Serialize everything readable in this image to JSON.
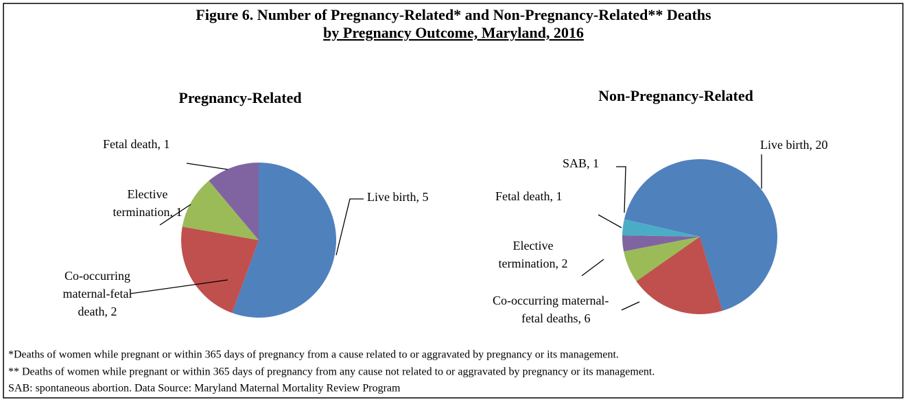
{
  "title": [
    "Figure 6. Number of Pregnancy-Related* and Non-Pregnancy-Related** Deaths",
    "by Pregnancy Outcome, Maryland, 2016"
  ],
  "chart_data": [
    {
      "type": "pie",
      "title": "Pregnancy-Related",
      "values": [
        5,
        2,
        1,
        1
      ],
      "value_labels": [
        [
          "Live birth, 5"
        ],
        [
          "Co-occurring",
          "maternal-fetal",
          "death, 2"
        ],
        [
          "Elective",
          "termination, 1"
        ],
        [
          "Fetal death, 1"
        ]
      ],
      "colors": [
        "#4f81bd",
        "#c0504d",
        "#9bbb59",
        "#8064a2"
      ]
    },
    {
      "type": "pie",
      "title": "Non-Pregnancy-Related",
      "values": [
        20,
        6,
        2,
        1,
        1
      ],
      "value_labels": [
        [
          "Live birth, 20"
        ],
        [
          "Co-occurring  maternal-",
          "fetal deaths, 6"
        ],
        [
          "Elective",
          "termination, 2"
        ],
        [
          "Fetal death, 1"
        ],
        [
          "SAB, 1"
        ]
      ],
      "colors": [
        "#4f81bd",
        "#c0504d",
        "#9bbb59",
        "#8064a2",
        "#4bacc6"
      ]
    }
  ],
  "footnotes": [
    "*Deaths of women while pregnant or within 365 days of pregnancy from a cause related to or aggravated by pregnancy or its management.",
    "** Deaths of women while pregnant or within 365 days of pregnancy from any cause not related to or aggravated by pregnancy or its management.",
    "SAB: spontaneous abortion. Data Source: Maryland Maternal Mortality Review Program"
  ]
}
